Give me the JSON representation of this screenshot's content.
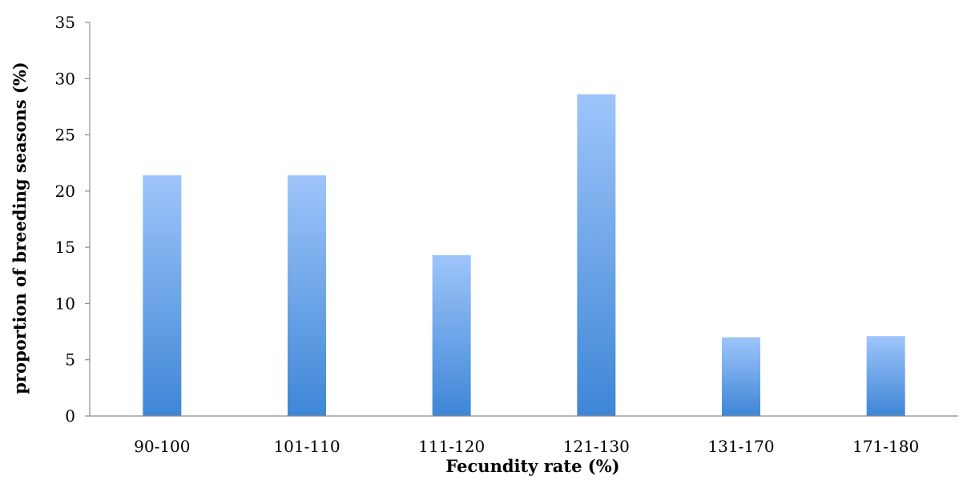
{
  "chart_data": {
    "type": "bar",
    "categories": [
      "90-100",
      "101-110",
      "111-120",
      "121-130",
      "131-170",
      "171-180"
    ],
    "values": [
      21.4,
      21.4,
      14.3,
      28.6,
      7.0,
      7.1
    ],
    "xlabel": "Fecundity rate (%)",
    "ylabel": "proportion of breeding seasons (%)",
    "ylim": [
      0,
      35
    ],
    "yticks": [
      0,
      5,
      10,
      15,
      20,
      25,
      30,
      35
    ],
    "grid": false,
    "legend": "none",
    "colors": {
      "bar_top": "#9ec5fa",
      "bar_bottom": "#3e86d6",
      "axis": "#8c8c8c"
    }
  }
}
